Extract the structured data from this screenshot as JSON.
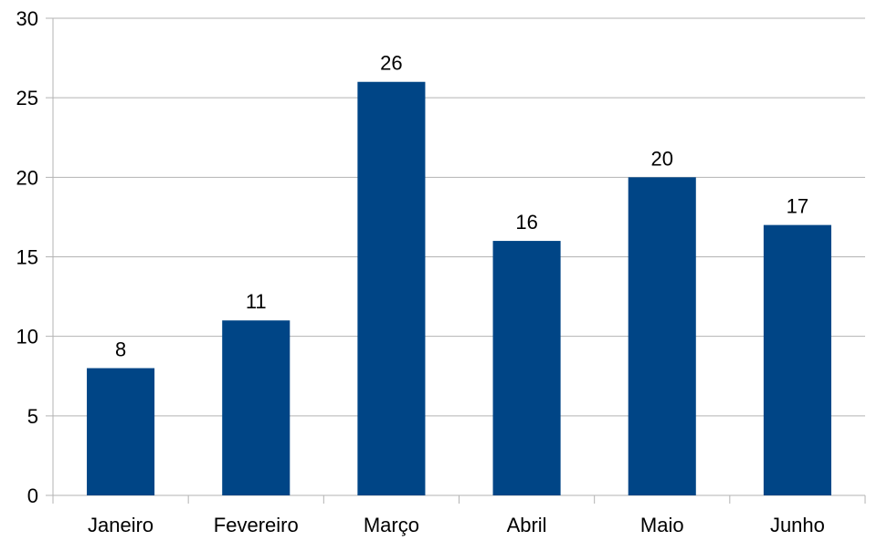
{
  "chart_data": {
    "type": "bar",
    "title": "",
    "xlabel": "",
    "ylabel": "",
    "categories": [
      "Janeiro",
      "Fevereiro",
      "Março",
      "Abril",
      "Maio",
      "Junho"
    ],
    "values": [
      8,
      11,
      26,
      16,
      20,
      17
    ],
    "data_labels": [
      "8",
      "11",
      "26",
      "16",
      "20",
      "17"
    ],
    "ylim": [
      0,
      30
    ],
    "y_ticks": [
      0,
      5,
      10,
      15,
      20,
      25,
      30
    ],
    "y_tick_labels": [
      "0",
      "5",
      "10",
      "15",
      "20",
      "25",
      "30"
    ],
    "grid": true,
    "legend": "none",
    "colors": {
      "bar": "#004586",
      "grid": "#b3b3b3",
      "axis": "#b3b3b3",
      "text": "#000000"
    }
  }
}
